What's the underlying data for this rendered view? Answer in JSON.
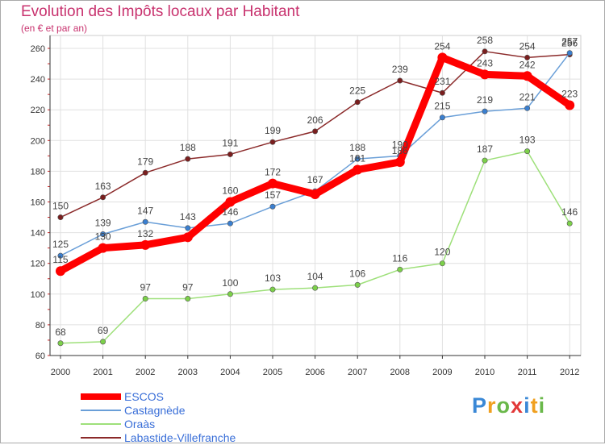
{
  "header": {
    "title": "Evolution des Impôts locaux par Habitant",
    "subtitle": "(en € et par an)"
  },
  "logo": {
    "text": "Proxiti",
    "letters": [
      "P",
      "r",
      "o",
      "x",
      "i",
      "t",
      "i"
    ]
  },
  "colors": {
    "ESCOS": "#ff0000",
    "Castagnède": "#6a9fd8",
    "Oraàs": "#9ee07a",
    "Labastide-Villefranche": "#8b2a2a",
    "grid": "#e0e0e0",
    "axis": "#333333",
    "label": "#444444"
  },
  "chart_data": {
    "type": "line",
    "title": "Evolution des Impôts locaux par Habitant",
    "subtitle": "(en € et par an)",
    "xlabel": "",
    "ylabel": "",
    "ylim": [
      60,
      260
    ],
    "yticks": [
      60,
      80,
      100,
      120,
      140,
      160,
      180,
      200,
      220,
      240,
      260
    ],
    "categories": [
      "2000",
      "2001",
      "2002",
      "2003",
      "2004",
      "2005",
      "2006",
      "2007",
      "2008",
      "2009",
      "2010",
      "2011",
      "2012"
    ],
    "grid": true,
    "legend_position": "bottom-left",
    "series": [
      {
        "name": "ESCOS",
        "values": [
          115,
          130,
          132,
          137,
          160,
          172,
          165,
          181,
          186,
          254,
          243,
          242,
          223
        ],
        "labels": [
          "115",
          "130",
          "132",
          "",
          "160",
          "172",
          "",
          "181",
          "186",
          "254",
          "243",
          "242",
          "223"
        ],
        "style": "thick"
      },
      {
        "name": "Castagnède",
        "values": [
          125,
          139,
          147,
          143,
          146,
          157,
          167,
          188,
          190,
          215,
          219,
          221,
          257
        ],
        "labels": [
          "125",
          "139",
          "147",
          "143",
          "146",
          "157",
          "167",
          "188",
          "190",
          "215",
          "219",
          "221",
          "257"
        ],
        "style": "thin"
      },
      {
        "name": "Oraàs",
        "values": [
          68,
          69,
          97,
          97,
          100,
          103,
          104,
          106,
          116,
          120,
          187,
          193,
          146
        ],
        "labels": [
          "68",
          "69",
          "97",
          "97",
          "100",
          "103",
          "104",
          "106",
          "116",
          "120",
          "187",
          "193",
          "146"
        ],
        "style": "thin"
      },
      {
        "name": "Labastide-Villefranche",
        "values": [
          150,
          163,
          179,
          188,
          191,
          199,
          206,
          225,
          239,
          231,
          258,
          254,
          256
        ],
        "labels": [
          "150",
          "163",
          "179",
          "188",
          "191",
          "199",
          "206",
          "225",
          "239",
          "231",
          "258",
          "254",
          "256"
        ],
        "style": "thin"
      }
    ]
  }
}
